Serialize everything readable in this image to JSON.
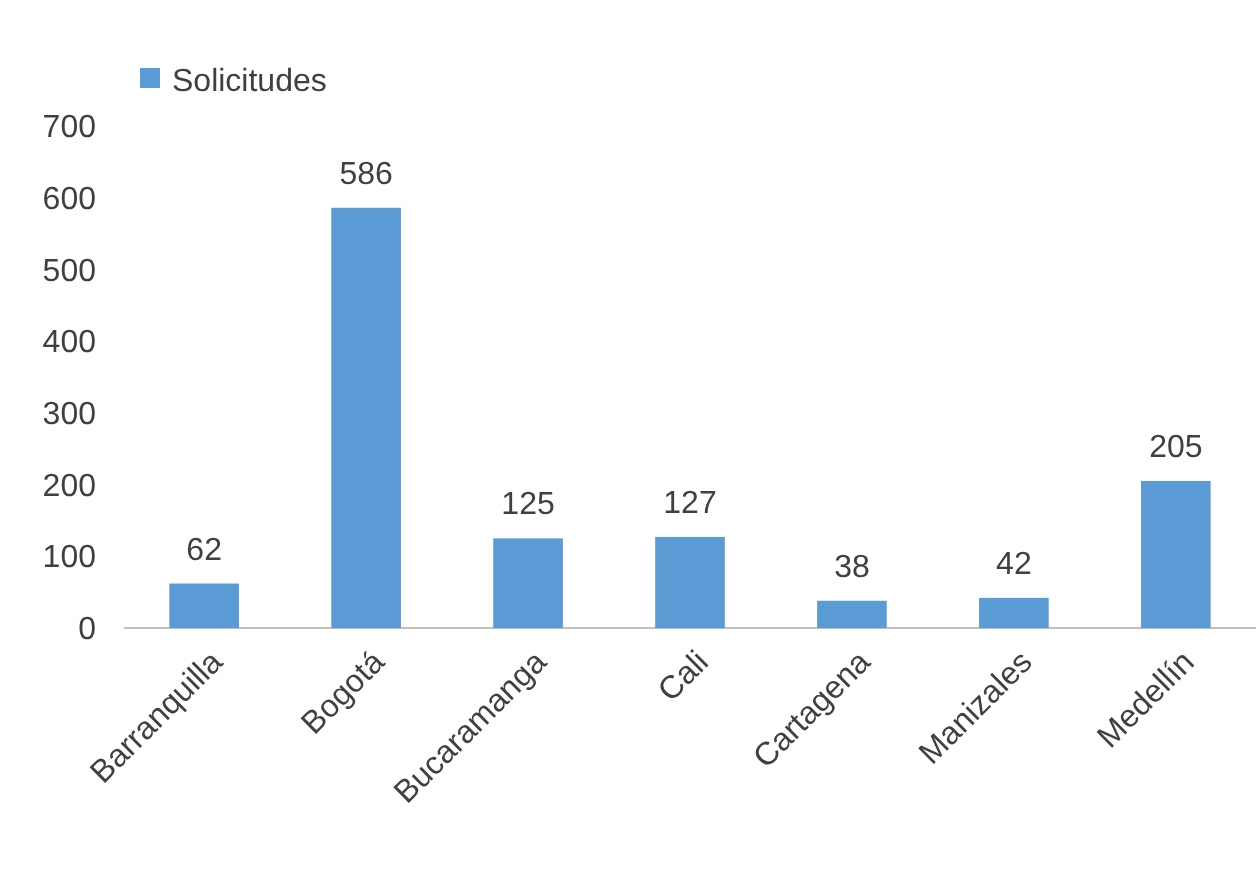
{
  "chart_data": {
    "type": "bar",
    "categories": [
      "Barranquilla",
      "Bogotá",
      "Bucaramanga",
      "Cali",
      "Cartagena",
      "Manizales",
      "Medellín"
    ],
    "series": [
      {
        "name": "Solicitudes",
        "color": "#5b9bd5",
        "values": [
          62,
          586,
          125,
          127,
          38,
          42,
          205
        ]
      }
    ],
    "ylim": [
      0,
      700
    ],
    "yticks": [
      0,
      100,
      200,
      300,
      400,
      500,
      600,
      700
    ],
    "grid": false,
    "legend": "top left",
    "data_labels": true
  }
}
